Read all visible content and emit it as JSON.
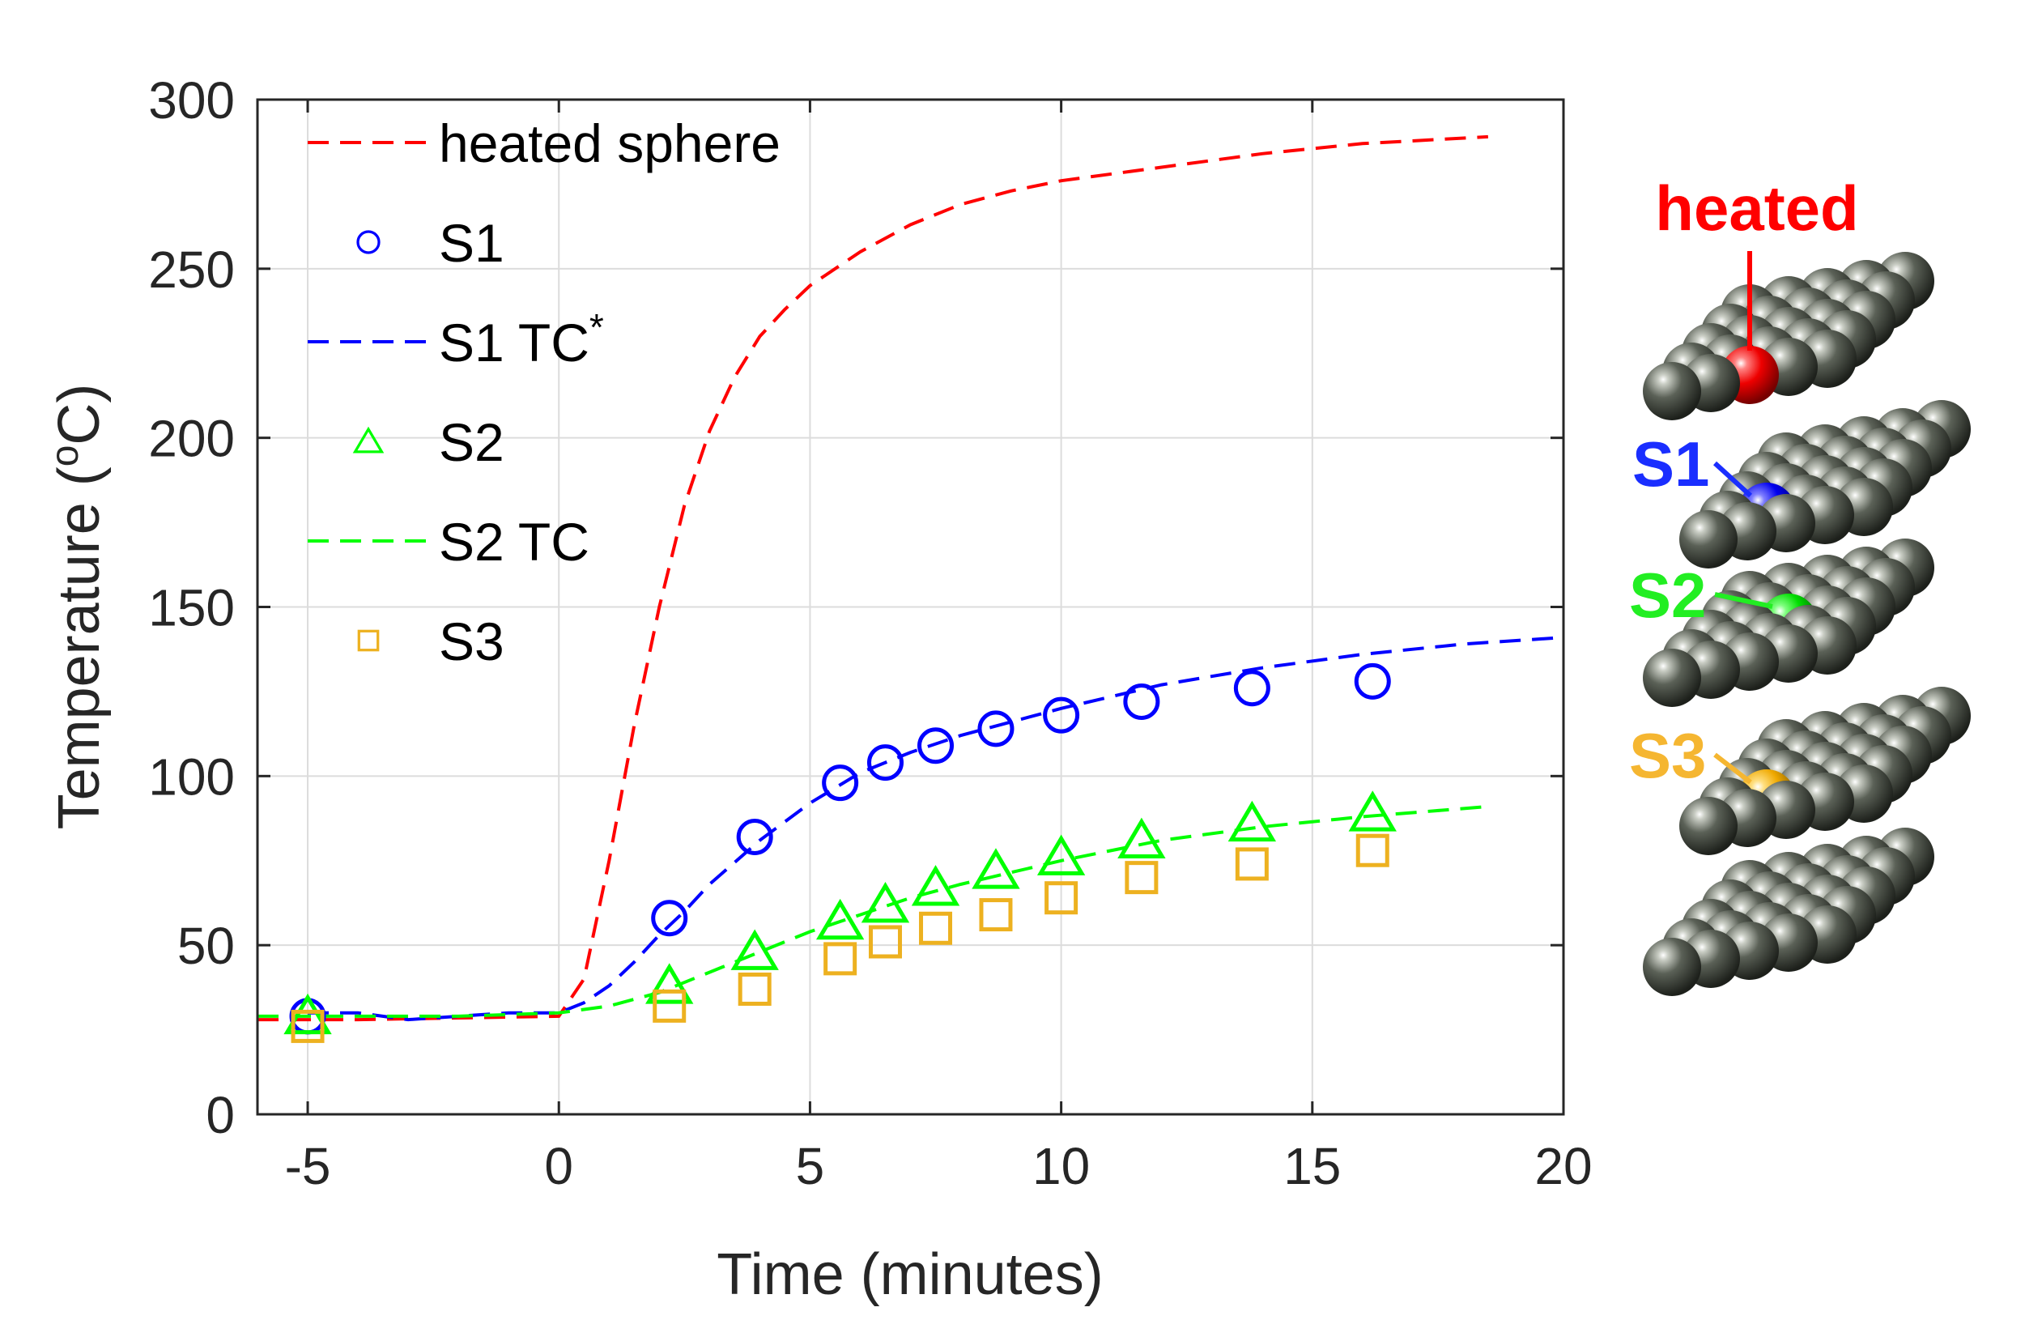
{
  "chart_data": {
    "type": "line",
    "xlabel": "Time (minutes)",
    "ylabel_main": "Temperature (",
    "ylabel_sup": "o",
    "ylabel_tail": "C)",
    "xlim": [
      -6,
      20
    ],
    "ylim": [
      0,
      300
    ],
    "xticks": [
      -5,
      0,
      5,
      10,
      15,
      20
    ],
    "yticks": [
      0,
      50,
      100,
      150,
      200,
      250,
      300
    ],
    "grid": true,
    "legend_position": "top-left",
    "colors": {
      "heated": "#ff0000",
      "s1": "#0000ff",
      "s2": "#00ff00",
      "s3": "#edb120",
      "sphere": "#4a5046"
    },
    "series": [
      {
        "name": "heated sphere",
        "style": "dashed",
        "color": "#ff0000",
        "x": [
          -6,
          -4,
          -2,
          0,
          0.5,
          1,
          1.5,
          2,
          2.5,
          3,
          3.5,
          4,
          4.5,
          5,
          6,
          7,
          8,
          9,
          10,
          12,
          14,
          16,
          18.5
        ],
        "y": [
          28,
          28,
          28.5,
          29,
          40,
          75,
          115,
          150,
          180,
          202,
          218,
          230,
          238,
          245,
          255,
          263,
          269,
          273,
          276,
          280,
          284,
          287,
          289
        ]
      },
      {
        "name": "S1",
        "style": "circle",
        "color": "#0000ff",
        "x": [
          -5,
          2.2,
          3.9,
          5.6,
          6.5,
          7.5,
          8.7,
          10,
          11.6,
          13.8,
          16.2
        ],
        "y": [
          29,
          58,
          82,
          98,
          104,
          109,
          114,
          118,
          122,
          126,
          128
        ]
      },
      {
        "name": "S1 TC",
        "name_sup": "*",
        "style": "dashed",
        "color": "#0000ff",
        "x": [
          -5,
          -4,
          -3,
          -2,
          -1,
          0,
          0.5,
          1,
          1.5,
          2,
          2.5,
          3,
          4,
          5,
          6,
          7,
          8,
          10,
          12,
          14,
          16,
          18,
          20
        ],
        "y": [
          30,
          30,
          28,
          29,
          30,
          30,
          33,
          38,
          45,
          53,
          60,
          68,
          81,
          92,
          101,
          107,
          112,
          120,
          127,
          132,
          136,
          139,
          141
        ]
      },
      {
        "name": "S2",
        "style": "triangle",
        "color": "#00ff00",
        "x": [
          -5,
          2.2,
          3.9,
          5.6,
          6.5,
          7.5,
          8.7,
          10,
          11.6,
          13.8,
          16.2
        ],
        "y": [
          29,
          38,
          48,
          57,
          62,
          67,
          72,
          76,
          81,
          86,
          89
        ]
      },
      {
        "name": "S2 TC",
        "style": "dashed",
        "color": "#00ff00",
        "x": [
          -6,
          -2,
          0,
          1,
          2,
          3,
          4,
          5,
          6,
          7,
          8,
          10,
          12,
          14,
          16,
          18.5
        ],
        "y": [
          29,
          29,
          30,
          32,
          36,
          42,
          48,
          54,
          59,
          64,
          68,
          75,
          81,
          85,
          88,
          91
        ]
      },
      {
        "name": "S3",
        "style": "square",
        "color": "#edb120",
        "x": [
          -5,
          2.2,
          3.9,
          5.6,
          6.5,
          7.5,
          8.7,
          10,
          11.6,
          13.8,
          16.2
        ],
        "y": [
          26,
          32,
          37,
          46,
          51,
          55,
          59,
          64,
          70,
          74,
          78
        ]
      }
    ]
  },
  "side_panel": {
    "labels": [
      "heated",
      "S1",
      "S2",
      "S3"
    ]
  }
}
